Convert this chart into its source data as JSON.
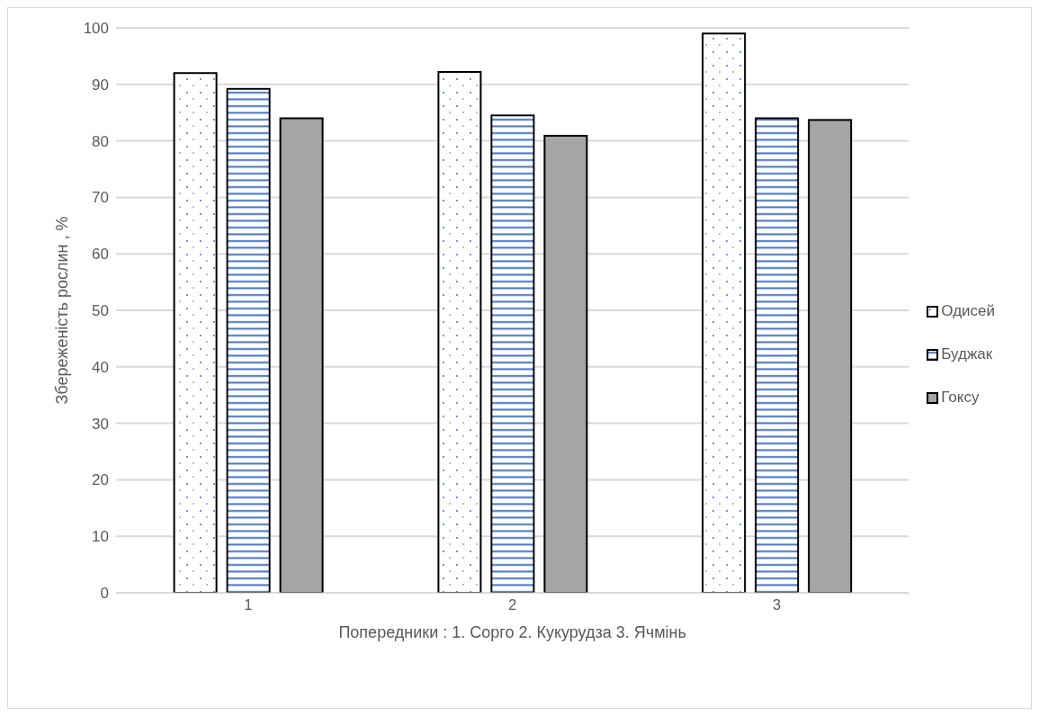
{
  "chart_data": {
    "type": "bar",
    "xlabel": "Попередники : 1. Сорго 2. Кукурудза 3. Ячмінь",
    "ylabel": "Збереженість рослин , %",
    "categories": [
      "1",
      "2",
      "3"
    ],
    "series": [
      {
        "name": "Одисей",
        "color": "#ffffff",
        "values": [
          92,
          92.2,
          99
        ]
      },
      {
        "name": "Буджак",
        "color": "#4472c4",
        "values": [
          89.2,
          84.5,
          84
        ]
      },
      {
        "name": "Гоксу",
        "color": "#a5a5a5",
        "values": [
          84,
          80.9,
          83.7
        ]
      }
    ],
    "ylim": [
      0,
      100
    ],
    "yticks": [
      0,
      10,
      20,
      30,
      40,
      50,
      60,
      70,
      80,
      90,
      100
    ],
    "grid": "y",
    "legend": "right"
  }
}
